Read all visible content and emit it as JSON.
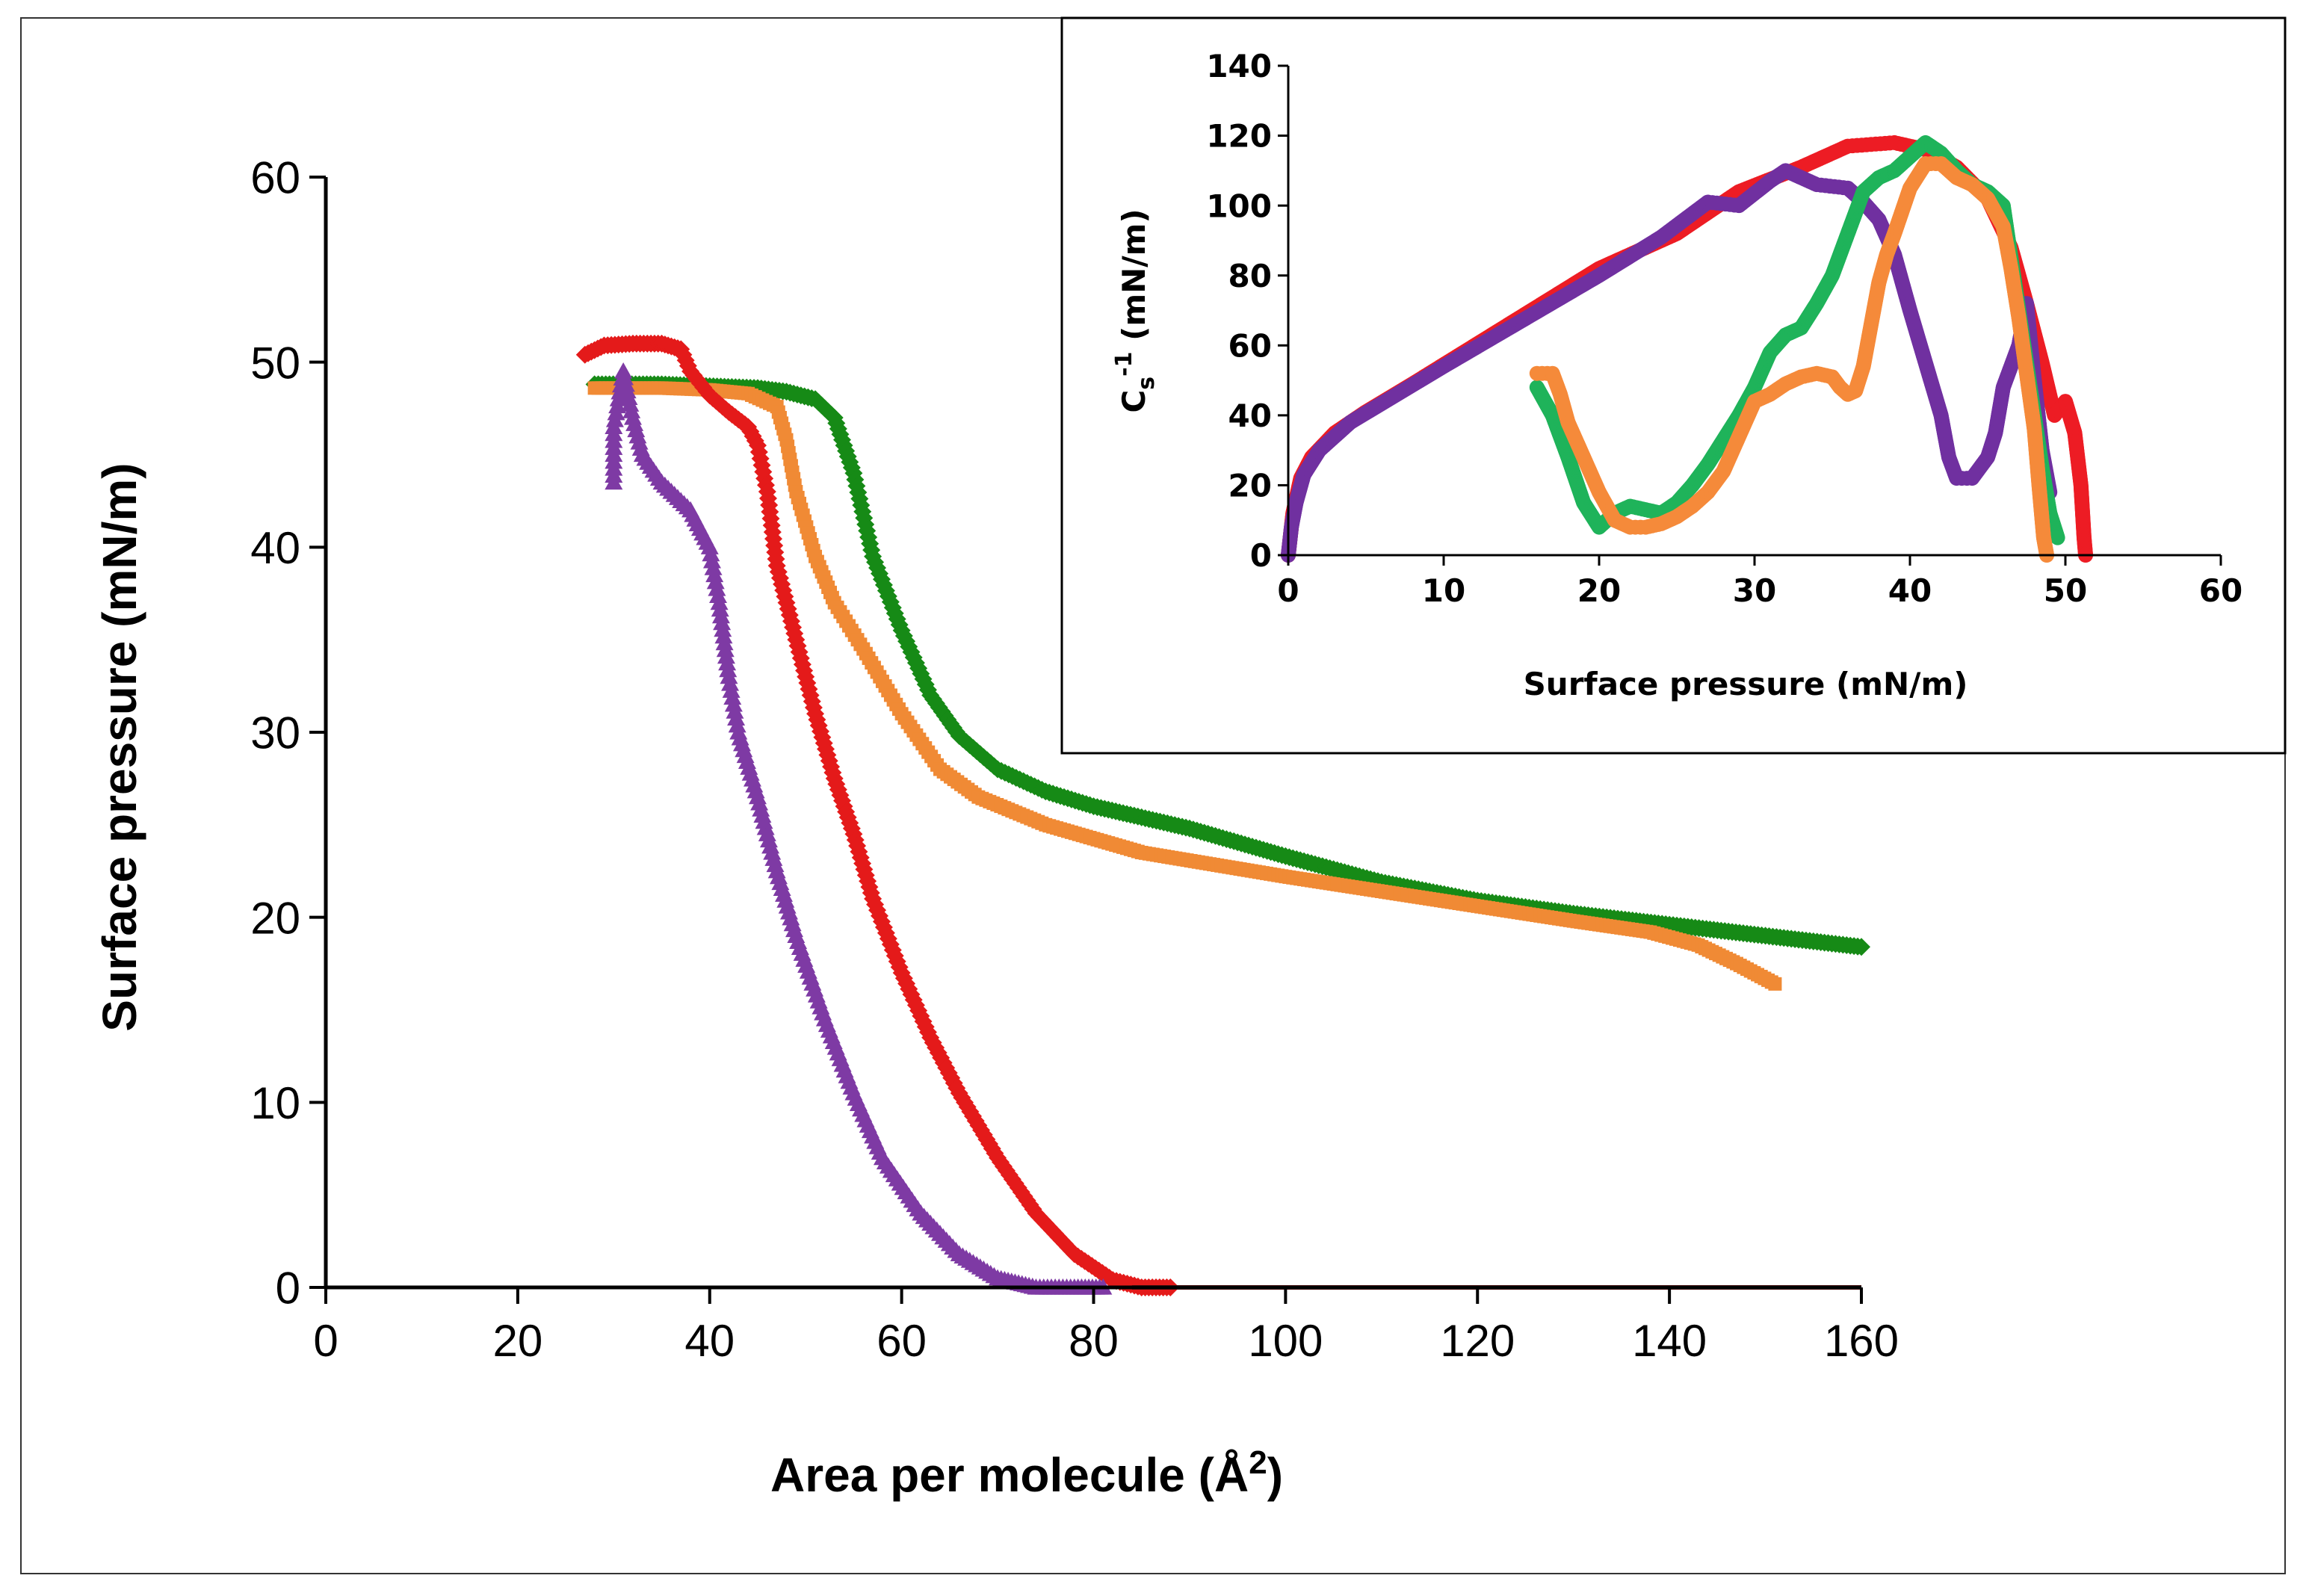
{
  "chart_data": [
    {
      "id": "main",
      "type": "scatter",
      "title": "",
      "xlabel": "Area per molecule (Å",
      "xlabel_sup": "2",
      "xlabel_end": ")",
      "ylabel": "Surface pressure (mN/m)",
      "xlim": [
        0,
        160
      ],
      "ylim": [
        0,
        60
      ],
      "xticks": [
        "0",
        "20",
        "40",
        "60",
        "80",
        "100",
        "120",
        "140",
        "160"
      ],
      "yticks": [
        "0",
        "10",
        "20",
        "30",
        "40",
        "50",
        "60"
      ],
      "grid": false,
      "series": [
        {
          "name": "green",
          "color": "#168a16",
          "marker": "diamond",
          "points": [
            [
              28,
              48.8
            ],
            [
              35,
              48.8
            ],
            [
              40,
              48.7
            ],
            [
              45,
              48.6
            ],
            [
              48,
              48.4
            ],
            [
              51,
              48.0
            ],
            [
              53,
              47.0
            ],
            [
              55,
              44.0
            ],
            [
              57,
              39.5
            ],
            [
              60,
              35.5
            ],
            [
              63,
              32.0
            ],
            [
              66,
              29.8
            ],
            [
              70,
              28.0
            ],
            [
              75,
              26.8
            ],
            [
              80,
              26.0
            ],
            [
              90,
              24.8
            ],
            [
              100,
              23.3
            ],
            [
              110,
              21.9
            ],
            [
              120,
              20.9
            ],
            [
              130,
              20.2
            ],
            [
              140,
              19.6
            ],
            [
              150,
              19.0
            ],
            [
              160,
              18.4
            ]
          ]
        },
        {
          "name": "orange",
          "color": "#f08a35",
          "marker": "square",
          "points": [
            [
              28,
              48.6
            ],
            [
              35,
              48.6
            ],
            [
              40,
              48.5
            ],
            [
              44,
              48.3
            ],
            [
              47,
              47.6
            ],
            [
              48,
              45.8
            ],
            [
              49,
              43.0
            ],
            [
              51,
              39.5
            ],
            [
              53,
              37.0
            ],
            [
              56,
              34.5
            ],
            [
              60,
              31.0
            ],
            [
              64,
              28.0
            ],
            [
              68,
              26.5
            ],
            [
              75,
              25.0
            ],
            [
              85,
              23.5
            ],
            [
              100,
              22.2
            ],
            [
              110,
              21.4
            ],
            [
              120,
              20.6
            ],
            [
              130,
              19.8
            ],
            [
              138,
              19.2
            ],
            [
              143,
              18.5
            ],
            [
              147,
              17.5
            ],
            [
              151,
              16.4
            ]
          ]
        },
        {
          "name": "red",
          "color": "#e41a1a",
          "marker": "diamond",
          "points": [
            [
              27,
              50.4
            ],
            [
              29,
              50.9
            ],
            [
              32,
              51.0
            ],
            [
              35,
              51.0
            ],
            [
              37,
              50.7
            ],
            [
              38,
              49.5
            ],
            [
              40,
              48.2
            ],
            [
              42,
              47.3
            ],
            [
              44,
              46.5
            ],
            [
              45,
              45.5
            ],
            [
              46,
              43.0
            ],
            [
              47,
              39.0
            ],
            [
              49,
              35.0
            ],
            [
              51,
              31.0
            ],
            [
              53,
              27.5
            ],
            [
              55,
              24.5
            ],
            [
              57,
              21.0
            ],
            [
              60,
              17.0
            ],
            [
              63,
              13.5
            ],
            [
              66,
              10.5
            ],
            [
              70,
              7.0
            ],
            [
              74,
              4.0
            ],
            [
              78,
              1.8
            ],
            [
              82,
              0.4
            ],
            [
              85,
              0.0
            ],
            [
              88,
              0.0
            ]
          ]
        },
        {
          "name": "purple",
          "color": "#7e3aa4",
          "marker": "triangle",
          "points": [
            [
              30,
              43.5
            ],
            [
              30,
              45.0
            ],
            [
              30,
              46.5
            ],
            [
              30.5,
              48.0
            ],
            [
              31,
              49.5
            ],
            [
              32,
              47.0
            ],
            [
              33,
              45.0
            ],
            [
              35,
              43.5
            ],
            [
              38,
              42.0
            ],
            [
              40,
              40.0
            ],
            [
              41,
              37.0
            ],
            [
              42,
              33.0
            ],
            [
              43,
              30.0
            ],
            [
              45,
              26.5
            ],
            [
              47,
              22.5
            ],
            [
              49,
              19.0
            ],
            [
              52,
              14.5
            ],
            [
              55,
              10.5
            ],
            [
              58,
              7.0
            ],
            [
              62,
              4.0
            ],
            [
              66,
              1.8
            ],
            [
              70,
              0.5
            ],
            [
              74,
              0.0
            ],
            [
              78,
              0.0
            ],
            [
              81,
              0.0
            ]
          ]
        },
        {
          "name": "baseline",
          "color": "#7a1414",
          "marker": "line",
          "points": [
            [
              84,
              0.0
            ],
            [
              160,
              0.0
            ]
          ]
        }
      ]
    },
    {
      "id": "inset",
      "type": "scatter",
      "title": "",
      "xlabel": "Surface pressure (mN/m)",
      "ylabel_base": "C",
      "ylabel_sub": "s",
      "ylabel_sup": "-1",
      "ylabel_rest": " (mN/m)",
      "xlim": [
        0,
        60
      ],
      "ylim": [
        0,
        140
      ],
      "xticks": [
        "0",
        "10",
        "20",
        "30",
        "40",
        "50",
        "60"
      ],
      "yticks": [
        "0",
        "20",
        "40",
        "60",
        "80",
        "100",
        "120",
        "140"
      ],
      "grid": false,
      "series": [
        {
          "name": "red",
          "color": "#ed1c24",
          "points": [
            [
              0,
              0
            ],
            [
              0.3,
              12
            ],
            [
              0.8,
              22
            ],
            [
              1.5,
              28
            ],
            [
              3,
              35
            ],
            [
              5,
              41
            ],
            [
              8,
              49
            ],
            [
              12,
              60
            ],
            [
              16,
              71
            ],
            [
              20,
              82
            ],
            [
              25,
              92
            ],
            [
              29,
              104
            ],
            [
              33,
              111
            ],
            [
              36,
              117
            ],
            [
              39,
              118
            ],
            [
              41,
              116
            ],
            [
              43,
              111
            ],
            [
              45,
              102
            ],
            [
              46.5,
              88
            ],
            [
              47.5,
              72
            ],
            [
              48.5,
              55
            ],
            [
              49.3,
              40
            ],
            [
              50,
              44
            ],
            [
              50.6,
              35
            ],
            [
              51,
              20
            ],
            [
              51.2,
              5
            ],
            [
              51.3,
              0
            ]
          ]
        },
        {
          "name": "purple",
          "color": "#7030a0",
          "points": [
            [
              0,
              0
            ],
            [
              0.2,
              8
            ],
            [
              0.5,
              15
            ],
            [
              1,
              23
            ],
            [
              2,
              30
            ],
            [
              4,
              38
            ],
            [
              7,
              46
            ],
            [
              10,
              54
            ],
            [
              15,
              67
            ],
            [
              20,
              80
            ],
            [
              24,
              91
            ],
            [
              27,
              101
            ],
            [
              29,
              100
            ],
            [
              31,
              107
            ],
            [
              32,
              110
            ],
            [
              34,
              106
            ],
            [
              36,
              105
            ],
            [
              37,
              101
            ],
            [
              38,
              96
            ],
            [
              39,
              86
            ],
            [
              40,
              70
            ],
            [
              41,
              55
            ],
            [
              42,
              40
            ],
            [
              42.5,
              28
            ],
            [
              43,
              22
            ],
            [
              44,
              22
            ],
            [
              45,
              28
            ],
            [
              45.5,
              35
            ],
            [
              46,
              48
            ],
            [
              47,
              60
            ],
            [
              47.5,
              72
            ],
            [
              48,
              50
            ],
            [
              48.5,
              30
            ],
            [
              49,
              18
            ]
          ]
        },
        {
          "name": "green",
          "color": "#1fb35a",
          "points": [
            [
              16,
              48
            ],
            [
              17,
              40
            ],
            [
              18,
              28
            ],
            [
              19,
              15
            ],
            [
              20,
              8
            ],
            [
              21,
              12
            ],
            [
              22,
              14
            ],
            [
              23,
              13
            ],
            [
              24,
              12
            ],
            [
              25,
              15
            ],
            [
              26,
              20
            ],
            [
              27,
              26
            ],
            [
              28,
              33
            ],
            [
              29,
              40
            ],
            [
              30,
              48
            ],
            [
              31,
              58
            ],
            [
              32,
              63
            ],
            [
              33,
              65
            ],
            [
              34,
              72
            ],
            [
              35,
              80
            ],
            [
              36,
              92
            ],
            [
              37,
              104
            ],
            [
              38,
              108
            ],
            [
              39,
              110
            ],
            [
              40,
              114
            ],
            [
              41,
              118
            ],
            [
              42,
              115
            ],
            [
              43,
              110
            ],
            [
              44,
              106
            ],
            [
              45,
              104
            ],
            [
              46,
              100
            ],
            [
              46.5,
              85
            ],
            [
              47,
              70
            ],
            [
              47.5,
              55
            ],
            [
              48,
              40
            ],
            [
              48.5,
              25
            ],
            [
              49,
              12
            ],
            [
              49.5,
              5
            ]
          ]
        },
        {
          "name": "orange",
          "color": "#f58a3a",
          "points": [
            [
              16,
              52
            ],
            [
              17,
              52
            ],
            [
              17.5,
              46
            ],
            [
              18,
              38
            ],
            [
              19,
              28
            ],
            [
              20,
              18
            ],
            [
              21,
              10
            ],
            [
              22,
              8
            ],
            [
              23,
              8
            ],
            [
              24,
              9
            ],
            [
              25,
              11
            ],
            [
              26,
              14
            ],
            [
              27,
              18
            ],
            [
              28,
              24
            ],
            [
              29,
              34
            ],
            [
              30,
              44
            ],
            [
              31,
              46
            ],
            [
              32,
              49
            ],
            [
              33,
              51
            ],
            [
              34,
              52
            ],
            [
              35,
              51
            ],
            [
              35.5,
              48
            ],
            [
              36,
              46
            ],
            [
              36.5,
              47
            ],
            [
              37,
              54
            ],
            [
              37.5,
              66
            ],
            [
              38,
              78
            ],
            [
              38.5,
              86
            ],
            [
              39,
              92
            ],
            [
              40,
              105
            ],
            [
              41,
              112
            ],
            [
              42,
              112
            ],
            [
              43,
              108
            ],
            [
              44,
              106
            ],
            [
              45,
              102
            ],
            [
              46,
              94
            ],
            [
              46.5,
              82
            ],
            [
              47,
              68
            ],
            [
              47.5,
              52
            ],
            [
              48,
              36
            ],
            [
              48.3,
              20
            ],
            [
              48.6,
              5
            ],
            [
              48.8,
              0
            ]
          ]
        }
      ]
    }
  ]
}
